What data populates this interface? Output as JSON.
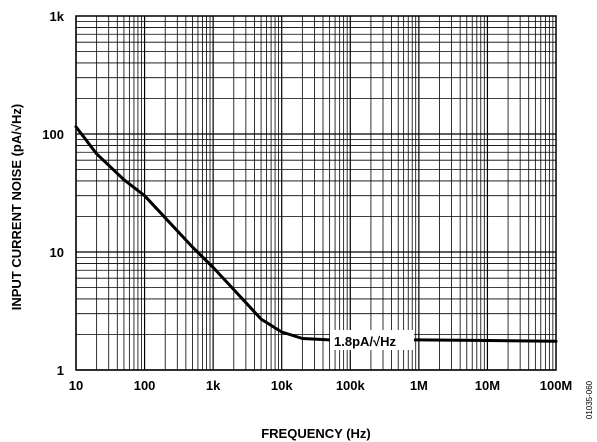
{
  "chart_data": {
    "type": "line",
    "xlabel": "FREQUENCY (Hz)",
    "ylabel": "INPUT CURRENT NOISE (pA/√Hz)",
    "x_scale": "log",
    "y_scale": "log",
    "xlim": [
      10,
      100000000
    ],
    "ylim": [
      1,
      1000
    ],
    "grid": true,
    "x_ticks": [
      {
        "value": 10,
        "label": "10"
      },
      {
        "value": 100,
        "label": "100"
      },
      {
        "value": 1000,
        "label": "1k"
      },
      {
        "value": 10000,
        "label": "10k"
      },
      {
        "value": 100000,
        "label": "100k"
      },
      {
        "value": 1000000,
        "label": "1M"
      },
      {
        "value": 10000000,
        "label": "10M"
      },
      {
        "value": 100000000,
        "label": "100M"
      }
    ],
    "y_ticks": [
      {
        "value": 1,
        "label": "1"
      },
      {
        "value": 10,
        "label": "10"
      },
      {
        "value": 100,
        "label": "100"
      },
      {
        "value": 1000,
        "label": "1k"
      }
    ],
    "series": [
      {
        "color": "#000000",
        "x": [
          10,
          20,
          50,
          100,
          200,
          500,
          1000,
          2000,
          5000,
          10000,
          20000,
          50000,
          100000,
          1000000,
          10000000,
          100000000
        ],
        "y": [
          115,
          68,
          41,
          30,
          19.5,
          11,
          7.4,
          4.8,
          2.7,
          2.1,
          1.85,
          1.8,
          1.8,
          1.8,
          1.78,
          1.75
        ]
      }
    ],
    "annotations": [
      {
        "text": "1.8pA/√Hz",
        "x": 100000,
        "y": 2.3
      }
    ]
  },
  "figure_id": "01035-060"
}
